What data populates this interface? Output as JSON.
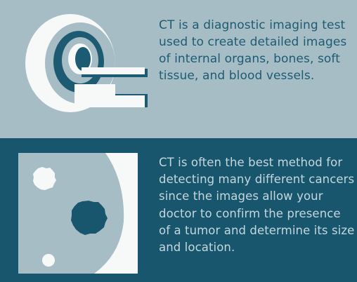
{
  "top_section": {
    "description": "CT is a diagnostic imaging test used to create detailed images of internal organs, bones, soft tissue, and blood vessels.",
    "illustration_icon": "ct-scanner-icon"
  },
  "bottom_section": {
    "description": "CT is often the best method for detecting many different cancers since the images allow your doctor to confirm the presence of a tumor and determine its size and location.",
    "illustration_icon": "tumor-scan-icon"
  },
  "colors": {
    "light_background": "#a7bdc5",
    "dark_background": "#17566d",
    "dark_text": "#1d5b73",
    "light_text": "#c5d7de",
    "white": "#f7f9f9"
  }
}
